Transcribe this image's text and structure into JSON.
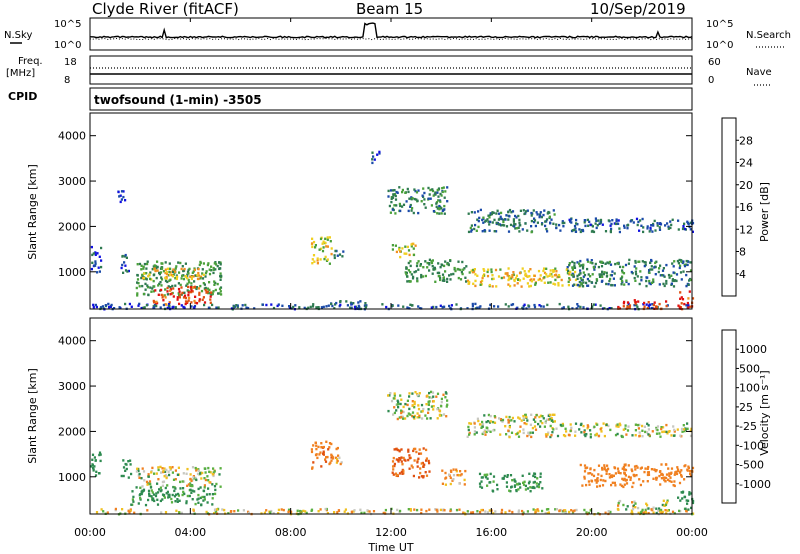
{
  "header": {
    "station": "Clyde River (fitACF)",
    "beam": "Beam 15",
    "date": "10/Sep/2019"
  },
  "status_panels": {
    "nsky_label": "N.Sky",
    "nsky_tick_top": "10^5",
    "nsky_tick_bottom": "10^0",
    "nsearch_label": "N.Search",
    "nsearch_tick_top": "10^5",
    "nsearch_tick_bottom": "10^0",
    "freq_label_1": "Freq.",
    "freq_label_2": "[MHz]",
    "freq_tick_top": "18",
    "freq_tick_bottom": "8",
    "nave_label": "Nave",
    "nave_tick_top": "60",
    "nave_tick_bottom": "0",
    "cpid_label": "CPID",
    "cpid_value": "twofsound (1-min) -3505"
  },
  "axes": {
    "ylabel": "Slant Range [km]",
    "xlabel": "Time UT",
    "y_ticks": [
      "1000",
      "2000",
      "3000",
      "4000"
    ],
    "x_ticks": [
      "00:00",
      "04:00",
      "08:00",
      "12:00",
      "16:00",
      "20:00",
      "00:00"
    ]
  },
  "colorbars": {
    "power": {
      "label": "Power [dB]",
      "ticks": [
        "4",
        "8",
        "12",
        "16",
        "20",
        "24",
        "28"
      ],
      "colors": [
        "#1010e0",
        "#1a4aa8",
        "#2e7a50",
        "#4aa03a",
        "#f0d020",
        "#f09020",
        "#e05010",
        "#e01010"
      ]
    },
    "velocity": {
      "label": "Velocity [m s⁻¹]",
      "ticks": [
        "1000",
        "500",
        "100",
        "25",
        "-25",
        "-100",
        "-500",
        "-1000"
      ],
      "colors": [
        "#1a3ab0",
        "#2a6a9a",
        "#2e8a50",
        "#5ab040",
        "#c8c8c0",
        "#f0c020",
        "#f08020",
        "#e05010",
        "#e01010"
      ]
    }
  },
  "chart_data": [
    {
      "type": "heatmap",
      "title": "Power",
      "xlabel": "Time UT",
      "ylabel": "Slant Range [km]",
      "xlim": [
        0,
        24
      ],
      "ylim": [
        180,
        4500
      ],
      "colorbar_range_db": [
        0,
        32
      ],
      "regions": [
        {
          "t": [
            0.0,
            0.4
          ],
          "r": [
            1000,
            1600
          ],
          "value_db": 6
        },
        {
          "t": [
            1.0,
            1.4
          ],
          "r": [
            2500,
            2800
          ],
          "value_db": 5
        },
        {
          "t": [
            1.2,
            1.6
          ],
          "r": [
            1000,
            1400
          ],
          "value_db": 7
        },
        {
          "t": [
            1.8,
            5.2
          ],
          "r": [
            500,
            1250
          ],
          "value_db": 12
        },
        {
          "t": [
            2.0,
            4.5
          ],
          "r": [
            850,
            1100
          ],
          "value_db": 19
        },
        {
          "t": [
            2.5,
            4.8
          ],
          "r": [
            300,
            700
          ],
          "value_db": 27
        },
        {
          "t": [
            0.0,
            24.0
          ],
          "r": [
            200,
            320
          ],
          "value_db": 6
        },
        {
          "t": [
            8.8,
            9.6
          ],
          "r": [
            1200,
            1800
          ],
          "value_db": 17
        },
        {
          "t": [
            9.7,
            10.1
          ],
          "r": [
            1300,
            1500
          ],
          "value_db": 8
        },
        {
          "t": [
            11.8,
            14.2
          ],
          "r": [
            2300,
            2900
          ],
          "value_db": 10
        },
        {
          "t": [
            12.0,
            13.0
          ],
          "r": [
            1350,
            1650
          ],
          "value_db": 18
        },
        {
          "t": [
            12.5,
            15.0
          ],
          "r": [
            800,
            1300
          ],
          "value_db": 12
        },
        {
          "t": [
            15.0,
            18.5
          ],
          "r": [
            1900,
            2400
          ],
          "value_db": 9
        },
        {
          "t": [
            15.0,
            19.5
          ],
          "r": [
            700,
            1100
          ],
          "value_db": 18
        },
        {
          "t": [
            18.5,
            24.0
          ],
          "r": [
            1900,
            2200
          ],
          "value_db": 7
        },
        {
          "t": [
            19.0,
            24.0
          ],
          "r": [
            700,
            1300
          ],
          "value_db": 10
        },
        {
          "t": [
            21.0,
            23.0
          ],
          "r": [
            200,
            400
          ],
          "value_db": 28
        },
        {
          "t": [
            23.4,
            24.0
          ],
          "r": [
            200,
            600
          ],
          "value_db": 27
        },
        {
          "t": [
            9.5,
            11.0
          ],
          "r": [
            220,
            400
          ],
          "value_db": 8
        },
        {
          "t": [
            11.2,
            11.5
          ],
          "r": [
            3400,
            3700
          ],
          "value_db": 5
        }
      ]
    },
    {
      "type": "heatmap",
      "title": "Velocity",
      "xlabel": "Time UT",
      "ylabel": "Slant Range [km]",
      "xlim": [
        0,
        24
      ],
      "ylim": [
        180,
        4500
      ],
      "colorbar_range_ms": [
        -1000,
        1000
      ],
      "regions": [
        {
          "t": [
            0.0,
            0.4
          ],
          "r": [
            1000,
            1600
          ],
          "value_ms": 300
        },
        {
          "t": [
            1.2,
            1.6
          ],
          "r": [
            1000,
            1400
          ],
          "value_ms": 300
        },
        {
          "t": [
            1.8,
            5.2
          ],
          "r": [
            800,
            1250
          ],
          "value_ms": 0
        },
        {
          "t": [
            1.5,
            5.0
          ],
          "r": [
            400,
            800
          ],
          "value_ms": 200
        },
        {
          "t": [
            0.0,
            24.0
          ],
          "r": [
            200,
            320
          ],
          "value_ms": -60
        },
        {
          "t": [
            8.8,
            9.6
          ],
          "r": [
            1200,
            1800
          ],
          "value_ms": -400
        },
        {
          "t": [
            9.6,
            10.0
          ],
          "r": [
            1300,
            1700
          ],
          "value_ms": -150
        },
        {
          "t": [
            11.8,
            14.2
          ],
          "r": [
            2300,
            2900
          ],
          "value_ms": 0
        },
        {
          "t": [
            12.0,
            13.5
          ],
          "r": [
            1000,
            1650
          ],
          "value_ms": -500
        },
        {
          "t": [
            14.0,
            15.0
          ],
          "r": [
            850,
            1200
          ],
          "value_ms": -150
        },
        {
          "t": [
            15.0,
            18.5
          ],
          "r": [
            1900,
            2400
          ],
          "value_ms": 0
        },
        {
          "t": [
            15.5,
            18.0
          ],
          "r": [
            700,
            1100
          ],
          "value_ms": 200
        },
        {
          "t": [
            18.5,
            24.0
          ],
          "r": [
            1900,
            2200
          ],
          "value_ms": 0
        },
        {
          "t": [
            19.5,
            24.0
          ],
          "r": [
            800,
            1300
          ],
          "value_ms": -300
        },
        {
          "t": [
            21.0,
            23.0
          ],
          "r": [
            200,
            500
          ],
          "value_ms": 0
        },
        {
          "t": [
            23.4,
            24.0
          ],
          "r": [
            300,
            700
          ],
          "value_ms": 300
        }
      ]
    }
  ]
}
